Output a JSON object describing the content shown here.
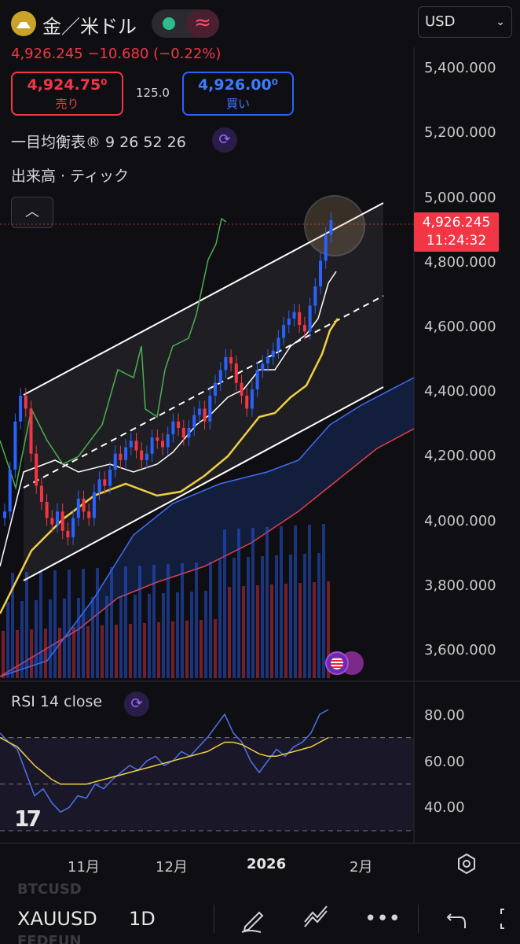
{
  "header": {
    "symbol_name": "金／米ドル",
    "price_change": "4,926.245  −10.680 (−0.22%)",
    "sell_price": "4,924.75⁰",
    "sell_label": "売り",
    "spread": "125.0",
    "buy_price": "4,926.00⁰",
    "buy_label": "買い",
    "currency": "USD",
    "wave_icon": "≈"
  },
  "indicators": {
    "ichimoku": "一目均衡表® 9 26 52 26",
    "volume": "出来高 · ティック",
    "rsi": "RSI 14 close"
  },
  "price_axis": [
    "5,400.000",
    "5,200.000",
    "5,000.000",
    "4,800.000",
    "4,600.000",
    "4,400.000",
    "4,200.000",
    "4,000.000",
    "3,800.000",
    "3,600.000"
  ],
  "last_price": {
    "price": "4,926.245",
    "countdown": "11:24:32"
  },
  "rsi_axis": [
    "80.00",
    "60.00",
    "40.00"
  ],
  "time_axis": {
    "nov": "11月",
    "dec": "12月",
    "year": "2026",
    "feb": "2月"
  },
  "bottom_bar": {
    "symbol": "XAUUSD",
    "timeframe": "1D",
    "ghost_top": "BTCUSD",
    "ghost_bottom": "FEDFUN"
  },
  "colors": {
    "up": "#2962ff",
    "down": "#f23645",
    "conversion": "#ffffff",
    "base": "#f0d040",
    "lagging": "#4caf50",
    "rsi": "#4d74e8",
    "rsi_ma": "#f0d040"
  }
}
